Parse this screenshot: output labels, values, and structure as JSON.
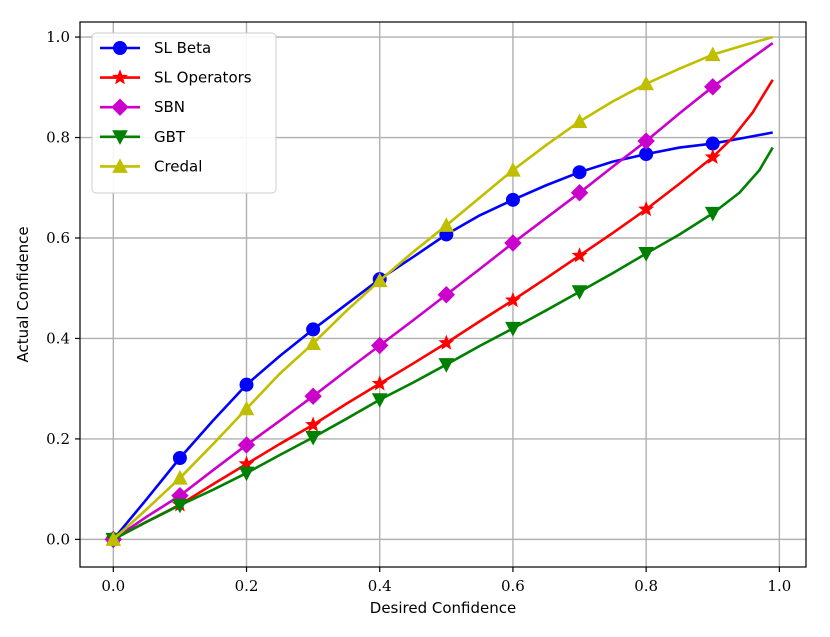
{
  "chart_data": {
    "type": "line",
    "xlabel": "Desired Confidence",
    "ylabel": "Actual Confidence",
    "xlim": [
      -0.05,
      1.04
    ],
    "ylim": [
      -0.055,
      1.03
    ],
    "xticks": [
      0.0,
      0.2,
      0.4,
      0.6,
      0.8,
      1.0
    ],
    "yticks": [
      0.0,
      0.2,
      0.4,
      0.6,
      0.8,
      1.0
    ],
    "xtick_labels": [
      "0.0",
      "0.2",
      "0.4",
      "0.6",
      "0.8",
      "1.0"
    ],
    "ytick_labels": [
      "0.0",
      "0.2",
      "0.4",
      "0.6",
      "0.8",
      "1.0"
    ],
    "grid": true,
    "legend_position": "top-left",
    "series": [
      {
        "name": "SL Beta",
        "color": "#0000ff",
        "marker": "circle",
        "line": {
          "x": [
            0.0,
            0.05,
            0.1,
            0.15,
            0.2,
            0.25,
            0.3,
            0.35,
            0.4,
            0.45,
            0.5,
            0.55,
            0.6,
            0.65,
            0.7,
            0.75,
            0.8,
            0.85,
            0.9,
            0.95,
            0.99
          ],
          "y": [
            0.0,
            0.08,
            0.162,
            0.237,
            0.308,
            0.365,
            0.418,
            0.468,
            0.518,
            0.562,
            0.607,
            0.645,
            0.676,
            0.705,
            0.731,
            0.752,
            0.767,
            0.78,
            0.788,
            0.8,
            0.81
          ]
        },
        "markers": {
          "x": [
            0.0,
            0.1,
            0.2,
            0.3,
            0.4,
            0.5,
            0.6,
            0.7,
            0.8,
            0.9
          ],
          "y": [
            0.0,
            0.162,
            0.308,
            0.418,
            0.518,
            0.607,
            0.676,
            0.731,
            0.767,
            0.788
          ]
        }
      },
      {
        "name": "SL Operators",
        "color": "#ff0000",
        "marker": "star",
        "line": {
          "x": [
            0.0,
            0.05,
            0.1,
            0.15,
            0.2,
            0.25,
            0.3,
            0.35,
            0.4,
            0.45,
            0.5,
            0.55,
            0.6,
            0.65,
            0.7,
            0.75,
            0.8,
            0.85,
            0.9,
            0.93,
            0.96,
            0.99
          ],
          "y": [
            0.0,
            0.035,
            0.069,
            0.11,
            0.15,
            0.19,
            0.228,
            0.27,
            0.31,
            0.35,
            0.391,
            0.434,
            0.476,
            0.52,
            0.565,
            0.61,
            0.657,
            0.708,
            0.761,
            0.8,
            0.85,
            0.915
          ]
        },
        "markers": {
          "x": [
            0.0,
            0.1,
            0.2,
            0.3,
            0.4,
            0.5,
            0.6,
            0.7,
            0.8,
            0.9
          ],
          "y": [
            0.0,
            0.069,
            0.15,
            0.228,
            0.31,
            0.391,
            0.476,
            0.565,
            0.657,
            0.761
          ]
        }
      },
      {
        "name": "SBN",
        "color": "#cc00cc",
        "marker": "diamond",
        "line": {
          "x": [
            0.0,
            0.05,
            0.1,
            0.15,
            0.2,
            0.25,
            0.3,
            0.35,
            0.4,
            0.45,
            0.5,
            0.55,
            0.6,
            0.65,
            0.7,
            0.75,
            0.8,
            0.85,
            0.9,
            0.95,
            0.99
          ],
          "y": [
            0.0,
            0.045,
            0.087,
            0.138,
            0.188,
            0.236,
            0.285,
            0.336,
            0.386,
            0.436,
            0.487,
            0.538,
            0.59,
            0.64,
            0.69,
            0.742,
            0.793,
            0.848,
            0.901,
            0.95,
            0.988
          ]
        },
        "markers": {
          "x": [
            0.0,
            0.1,
            0.2,
            0.3,
            0.4,
            0.5,
            0.6,
            0.7,
            0.8,
            0.9
          ],
          "y": [
            0.0,
            0.087,
            0.188,
            0.285,
            0.386,
            0.487,
            0.59,
            0.69,
            0.793,
            0.901
          ]
        }
      },
      {
        "name": "GBT",
        "color": "#008000",
        "marker": "triangle-down",
        "line": {
          "x": [
            0.0,
            0.05,
            0.1,
            0.15,
            0.2,
            0.25,
            0.3,
            0.35,
            0.4,
            0.45,
            0.5,
            0.55,
            0.6,
            0.65,
            0.7,
            0.75,
            0.8,
            0.85,
            0.9,
            0.94,
            0.97,
            0.99
          ],
          "y": [
            0.0,
            0.035,
            0.068,
            0.099,
            0.132,
            0.168,
            0.203,
            0.24,
            0.278,
            0.312,
            0.348,
            0.385,
            0.42,
            0.456,
            0.493,
            0.53,
            0.569,
            0.607,
            0.649,
            0.69,
            0.735,
            0.78
          ]
        },
        "markers": {
          "x": [
            0.0,
            0.1,
            0.2,
            0.3,
            0.4,
            0.5,
            0.6,
            0.7,
            0.8,
            0.9
          ],
          "y": [
            0.0,
            0.068,
            0.132,
            0.203,
            0.278,
            0.348,
            0.42,
            0.493,
            0.569,
            0.649
          ]
        }
      },
      {
        "name": "Credal",
        "color": "#bfbf00",
        "marker": "triangle-up",
        "line": {
          "x": [
            0.0,
            0.05,
            0.1,
            0.15,
            0.2,
            0.25,
            0.3,
            0.35,
            0.4,
            0.45,
            0.5,
            0.55,
            0.6,
            0.65,
            0.7,
            0.75,
            0.8,
            0.85,
            0.9,
            0.95,
            0.99
          ],
          "y": [
            0.0,
            0.06,
            0.122,
            0.19,
            0.26,
            0.33,
            0.39,
            0.455,
            0.515,
            0.572,
            0.625,
            0.68,
            0.735,
            0.785,
            0.832,
            0.872,
            0.907,
            0.937,
            0.965,
            0.985,
            1.0
          ]
        },
        "markers": {
          "x": [
            0.0,
            0.1,
            0.2,
            0.3,
            0.4,
            0.5,
            0.6,
            0.7,
            0.8,
            0.9
          ],
          "y": [
            0.0,
            0.122,
            0.26,
            0.39,
            0.515,
            0.625,
            0.735,
            0.832,
            0.907,
            0.965
          ]
        }
      }
    ]
  }
}
